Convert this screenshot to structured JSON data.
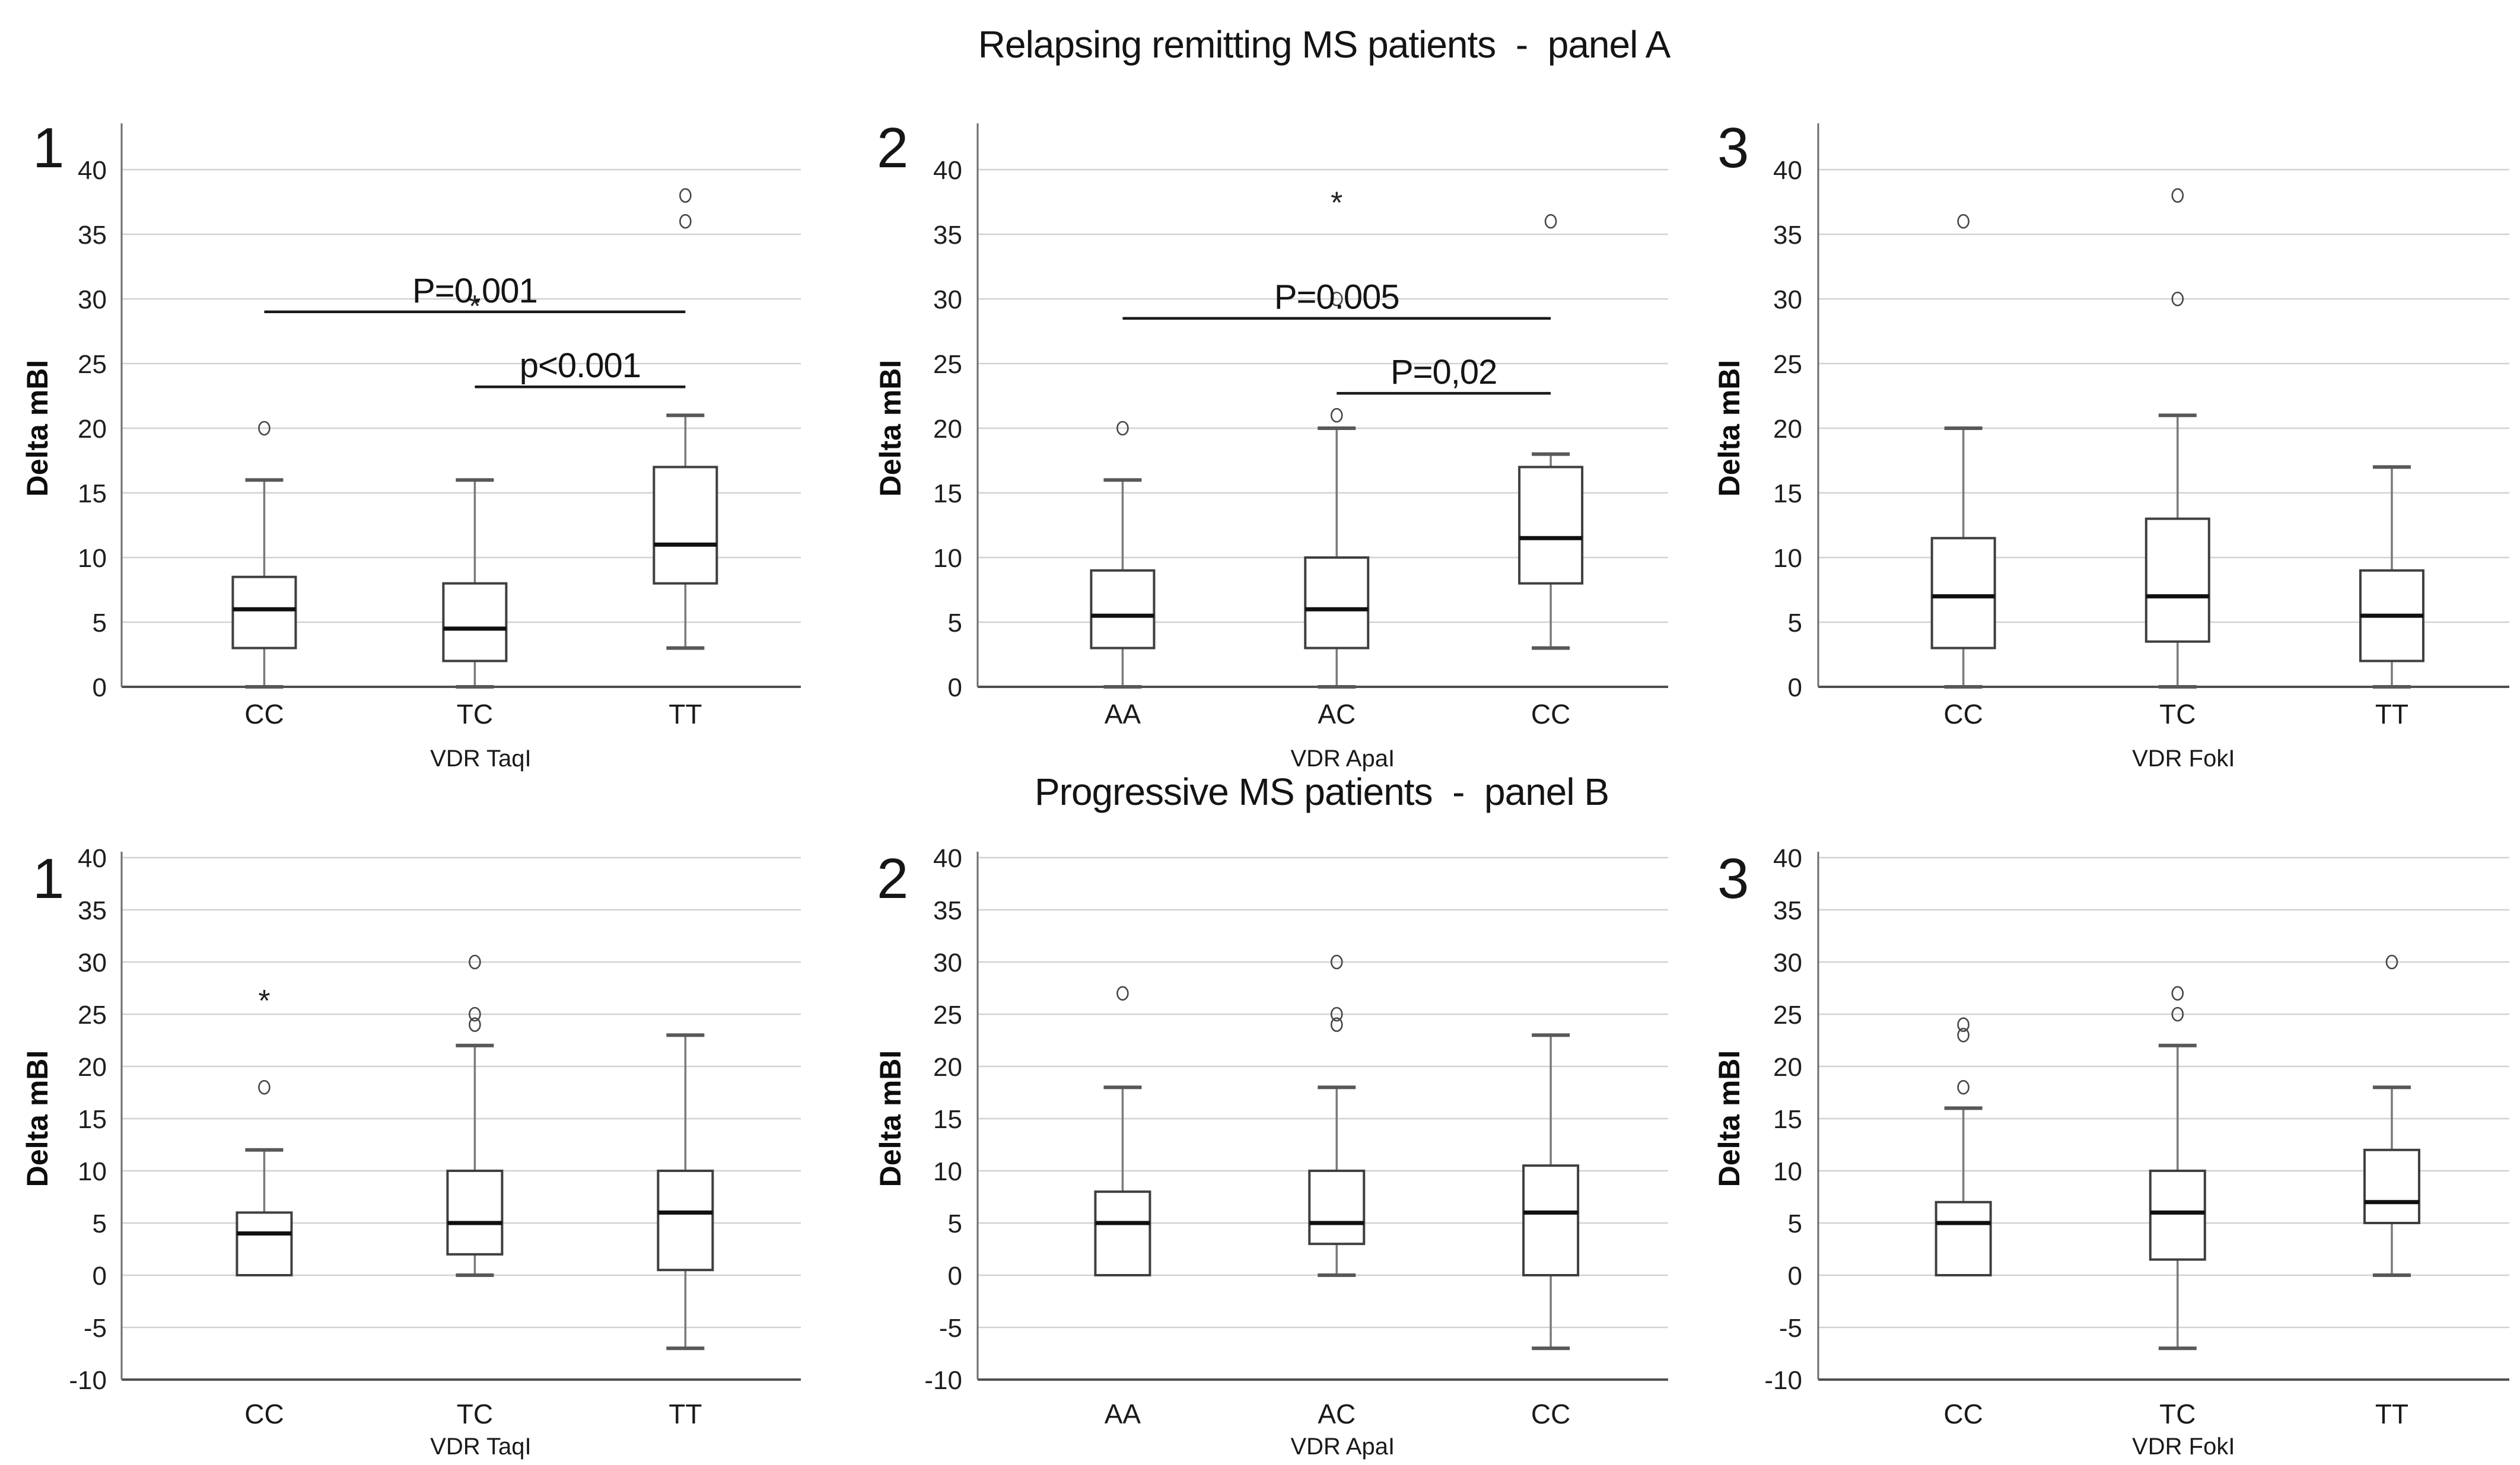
{
  "figure": {
    "panel_a_title": "Relapsing remitting MS patients  -  panel A",
    "panel_b_title": "Progressive MS patients  -  panel B",
    "ylabel": "Delta mBI"
  },
  "chart_data": [
    {
      "id": "A1",
      "panel": "A",
      "number": "1",
      "type": "box",
      "ylabel": "Delta mBI",
      "xlabel": "VDR TaqI",
      "ylim": [
        0,
        40
      ],
      "yticks": [
        0,
        5,
        10,
        15,
        20,
        25,
        30,
        35,
        40
      ],
      "grid": true,
      "categories": [
        "CC",
        "TC",
        "TT"
      ],
      "boxes": [
        {
          "category": "CC",
          "whisker_low": 0,
          "q1": 3,
          "median": 6,
          "q3": 8.5,
          "whisker_high": 16,
          "outliers": [
            {
              "value": 20,
              "symbol": "o"
            }
          ]
        },
        {
          "category": "TC",
          "whisker_low": 0,
          "q1": 2,
          "median": 4.5,
          "q3": 8,
          "whisker_high": 16,
          "outliers": [
            {
              "value": 30,
              "symbol": "*"
            }
          ]
        },
        {
          "category": "TT",
          "whisker_low": 3,
          "q1": 8,
          "median": 11,
          "q3": 17,
          "whisker_high": 21,
          "outliers": [
            {
              "value": 36,
              "symbol": "o"
            },
            {
              "value": 38,
              "symbol": "o"
            }
          ]
        }
      ],
      "significance": [
        {
          "label": "P=0.001",
          "from": "CC",
          "to": "TT",
          "y": 29
        },
        {
          "label": "p<0.001",
          "from": "TC",
          "to": "TT",
          "y": 23.2
        }
      ]
    },
    {
      "id": "A2",
      "panel": "A",
      "number": "2",
      "type": "box",
      "ylabel": "Delta mBI",
      "xlabel": "VDR ApaI",
      "ylim": [
        0,
        40
      ],
      "yticks": [
        0,
        5,
        10,
        15,
        20,
        25,
        30,
        35,
        40
      ],
      "grid": true,
      "categories": [
        "AA",
        "AC",
        "CC"
      ],
      "boxes": [
        {
          "category": "AA",
          "whisker_low": 0,
          "q1": 3,
          "median": 5.5,
          "q3": 9,
          "whisker_high": 16,
          "outliers": [
            {
              "value": 20,
              "symbol": "o"
            }
          ]
        },
        {
          "category": "AC",
          "whisker_low": 0,
          "q1": 3,
          "median": 6,
          "q3": 10,
          "whisker_high": 20,
          "outliers": [
            {
              "value": 21,
              "symbol": "o"
            },
            {
              "value": 30,
              "symbol": "o"
            },
            {
              "value": 38,
              "symbol": "*"
            }
          ]
        },
        {
          "category": "CC",
          "whisker_low": 3,
          "q1": 8,
          "median": 11.5,
          "q3": 17,
          "whisker_high": 18,
          "outliers": [
            {
              "value": 36,
              "symbol": "o"
            }
          ]
        }
      ],
      "significance": [
        {
          "label": "P=0.005",
          "from": "AA",
          "to": "CC",
          "y": 28.5
        },
        {
          "label": "P=0,02",
          "from": "AC",
          "to": "CC",
          "y": 22.7
        }
      ]
    },
    {
      "id": "A3",
      "panel": "A",
      "number": "3",
      "type": "box",
      "ylabel": "Delta mBI",
      "xlabel": "VDR FokI",
      "ylim": [
        0,
        40
      ],
      "yticks": [
        0,
        5,
        10,
        15,
        20,
        25,
        30,
        35,
        40
      ],
      "grid": true,
      "categories": [
        "CC",
        "TC",
        "TT"
      ],
      "boxes": [
        {
          "category": "CC",
          "whisker_low": 0,
          "q1": 3,
          "median": 7,
          "q3": 11.5,
          "whisker_high": 20,
          "outliers": [
            {
              "value": 36,
              "symbol": "o"
            }
          ]
        },
        {
          "category": "TC",
          "whisker_low": 0,
          "q1": 3.5,
          "median": 7,
          "q3": 13,
          "whisker_high": 21,
          "outliers": [
            {
              "value": 30,
              "symbol": "o"
            },
            {
              "value": 38,
              "symbol": "o"
            }
          ]
        },
        {
          "category": "TT",
          "whisker_low": 0,
          "q1": 2,
          "median": 5.5,
          "q3": 9,
          "whisker_high": 17,
          "outliers": []
        }
      ],
      "significance": []
    },
    {
      "id": "B1",
      "panel": "B",
      "number": "1",
      "type": "box",
      "ylabel": "Delta mBI",
      "xlabel": "VDR TaqI",
      "ylim": [
        -10,
        40
      ],
      "yticks": [
        -10,
        -5,
        0,
        5,
        10,
        15,
        20,
        25,
        30,
        35,
        40
      ],
      "grid": true,
      "categories": [
        "CC",
        "TC",
        "TT"
      ],
      "boxes": [
        {
          "category": "CC",
          "whisker_low": 0,
          "q1": 0,
          "median": 4,
          "q3": 6,
          "whisker_high": 12,
          "outliers": [
            {
              "value": 18,
              "symbol": "o"
            },
            {
              "value": 27,
              "symbol": "*"
            }
          ]
        },
        {
          "category": "TC",
          "whisker_low": 0,
          "q1": 2,
          "median": 5,
          "q3": 10,
          "whisker_high": 22,
          "outliers": [
            {
              "value": 24,
              "symbol": "o"
            },
            {
              "value": 25,
              "symbol": "o"
            },
            {
              "value": 30,
              "symbol": "o"
            }
          ]
        },
        {
          "category": "TT",
          "whisker_low": -7,
          "q1": 0.5,
          "median": 6,
          "q3": 10,
          "whisker_high": 23,
          "outliers": []
        }
      ],
      "significance": []
    },
    {
      "id": "B2",
      "panel": "B",
      "number": "2",
      "type": "box",
      "ylabel": "Delta mBI",
      "xlabel": "VDR ApaI",
      "ylim": [
        -10,
        40
      ],
      "yticks": [
        -10,
        -5,
        0,
        5,
        10,
        15,
        20,
        25,
        30,
        35,
        40
      ],
      "grid": true,
      "categories": [
        "AA",
        "AC",
        "CC"
      ],
      "boxes": [
        {
          "category": "AA",
          "whisker_low": 0,
          "q1": 0,
          "median": 5,
          "q3": 8,
          "whisker_high": 18,
          "outliers": [
            {
              "value": 27,
              "symbol": "o"
            }
          ]
        },
        {
          "category": "AC",
          "whisker_low": 0,
          "q1": 3,
          "median": 5,
          "q3": 10,
          "whisker_high": 18,
          "outliers": [
            {
              "value": 24,
              "symbol": "o"
            },
            {
              "value": 25,
              "symbol": "o"
            },
            {
              "value": 30,
              "symbol": "o"
            }
          ]
        },
        {
          "category": "CC",
          "whisker_low": -7,
          "q1": 0,
          "median": 6,
          "q3": 10.5,
          "whisker_high": 23,
          "outliers": []
        }
      ],
      "significance": []
    },
    {
      "id": "B3",
      "panel": "B",
      "number": "3",
      "type": "box",
      "ylabel": "Delta mBI",
      "xlabel": "VDR FokI",
      "ylim": [
        -10,
        40
      ],
      "yticks": [
        -10,
        -5,
        0,
        5,
        10,
        15,
        20,
        25,
        30,
        35,
        40
      ],
      "grid": true,
      "categories": [
        "CC",
        "TC",
        "TT"
      ],
      "boxes": [
        {
          "category": "CC",
          "whisker_low": 0,
          "q1": 0,
          "median": 5,
          "q3": 7,
          "whisker_high": 16,
          "outliers": [
            {
              "value": 18,
              "symbol": "o"
            },
            {
              "value": 23,
              "symbol": "o"
            },
            {
              "value": 24,
              "symbol": "o"
            }
          ]
        },
        {
          "category": "TC",
          "whisker_low": -7,
          "q1": 1.5,
          "median": 6,
          "q3": 10,
          "whisker_high": 22,
          "outliers": [
            {
              "value": 25,
              "symbol": "o"
            },
            {
              "value": 27,
              "symbol": "o"
            }
          ]
        },
        {
          "category": "TT",
          "whisker_low": 0,
          "q1": 5,
          "median": 7,
          "q3": 12,
          "whisker_high": 18,
          "outliers": [
            {
              "value": 30,
              "symbol": "o"
            }
          ]
        }
      ],
      "significance": []
    }
  ]
}
